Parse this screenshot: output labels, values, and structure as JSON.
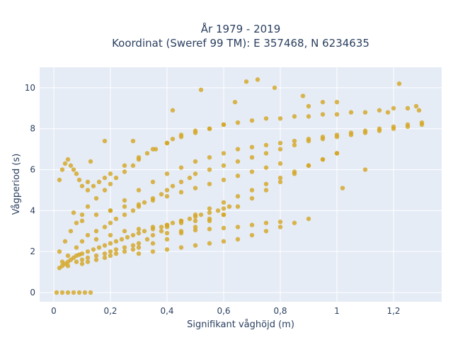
{
  "chart_data": {
    "type": "scatter",
    "title_line1": "År 1979 - 2019",
    "title_line2": "Koordinat (Sweref 99 TM): E 357468, N 6234635",
    "xlabel": "Signifikant våghöjd (m)",
    "ylabel": "Vågperiod (s)",
    "xlim": [
      -0.05,
      1.37
    ],
    "ylim": [
      -0.45,
      11.0
    ],
    "xticks": [
      0,
      0.2,
      0.4,
      0.6,
      0.8,
      1.0,
      1.2
    ],
    "xtick_labels": [
      "0",
      "0,2",
      "0,4",
      "0,6",
      "0,8",
      "1",
      "1,2"
    ],
    "yticks": [
      0,
      2,
      4,
      6,
      8,
      10
    ],
    "ytick_labels": [
      "0",
      "2",
      "4",
      "6",
      "8",
      "10"
    ],
    "grid": true,
    "colors": {
      "plot_bg": "#e5ecf6",
      "grid": "#ffffff",
      "marker": "#d4a521"
    },
    "series": [
      {
        "name": "",
        "x": [
          0.01,
          0.03,
          0.05,
          0.07,
          0.09,
          0.11,
          0.13,
          0.02,
          0.03,
          0.04,
          0.05,
          0.06,
          0.07,
          0.08,
          0.09,
          0.1,
          0.12,
          0.14,
          0.16,
          0.18,
          0.2,
          0.22,
          0.24,
          0.26,
          0.28,
          0.3,
          0.32,
          0.35,
          0.38,
          0.4,
          0.42,
          0.45,
          0.48,
          0.5,
          0.52,
          0.55,
          0.58,
          0.6,
          0.62,
          0.02,
          0.04,
          0.06,
          0.08,
          0.1,
          0.12,
          0.15,
          0.18,
          0.2,
          0.22,
          0.25,
          0.28,
          0.3,
          0.33,
          0.36,
          0.4,
          0.42,
          0.45,
          0.5,
          0.55,
          0.6,
          0.65,
          0.7,
          0.75,
          0.8,
          0.85,
          0.9,
          0.95,
          1.0,
          1.05,
          1.1,
          1.15,
          1.2,
          1.25,
          1.28,
          0.03,
          0.05,
          0.08,
          0.1,
          0.12,
          0.15,
          0.18,
          0.2,
          0.22,
          0.25,
          0.28,
          0.3,
          0.32,
          0.35,
          0.38,
          0.4,
          0.42,
          0.45,
          0.48,
          0.5,
          0.55,
          0.6,
          0.65,
          0.7,
          0.75,
          0.8,
          0.85,
          0.9,
          0.95,
          1.0,
          1.05,
          1.1,
          1.15,
          1.2,
          1.25,
          1.3,
          0.05,
          0.08,
          0.1,
          0.12,
          0.15,
          0.18,
          0.2,
          0.22,
          0.25,
          0.28,
          0.3,
          0.33,
          0.35,
          0.38,
          0.4,
          0.45,
          0.5,
          0.55,
          0.6,
          0.65,
          0.7,
          0.75,
          0.8,
          0.85,
          0.9,
          0.95,
          1.0,
          0.1,
          0.12,
          0.15,
          0.18,
          0.2,
          0.22,
          0.25,
          0.28,
          0.3,
          0.35,
          0.4,
          0.45,
          0.5,
          0.55,
          0.6,
          0.65,
          0.7,
          0.75,
          0.8,
          0.85,
          0.9,
          0.95,
          1.0,
          0.2,
          0.25,
          0.3,
          0.35,
          0.4,
          0.45,
          0.5,
          0.55,
          0.6,
          0.65,
          0.7,
          0.75,
          0.8,
          0.85,
          0.9,
          0.95,
          1.0,
          1.05,
          1.1,
          1.15,
          1.2,
          1.25,
          1.3,
          0.3,
          0.35,
          0.4,
          0.45,
          0.5,
          0.55,
          0.6,
          0.65,
          0.7,
          0.75,
          0.8,
          0.85,
          0.9,
          0.4,
          0.45,
          0.5,
          0.55,
          0.6,
          0.65,
          0.7,
          0.75,
          0.8,
          0.02,
          0.03,
          0.04,
          0.05,
          0.06,
          0.07,
          0.08,
          0.09,
          0.1,
          0.12,
          0.14,
          0.16,
          0.18,
          0.2,
          0.25,
          0.3,
          0.35,
          0.4,
          0.45,
          0.5,
          0.55,
          0.6,
          0.1,
          0.15,
          0.2,
          0.25,
          0.3,
          0.35,
          0.4,
          0.45,
          0.5,
          0.55,
          0.6,
          0.65,
          0.7,
          0.75,
          0.8,
          0.15,
          0.2,
          0.25,
          0.3,
          0.35,
          0.4,
          0.45,
          0.5,
          0.55,
          0.6,
          0.07,
          0.12,
          0.18,
          0.28,
          0.42,
          0.64,
          0.68,
          0.72,
          0.78,
          0.88,
          0.95,
          1.02,
          1.1,
          1.18,
          1.22,
          0.13,
          0.52,
          0.9,
          1.0,
          1.29
        ],
        "y": [
          0,
          0,
          0,
          0,
          0,
          0,
          0,
          1.2,
          1.3,
          1.4,
          1.5,
          1.6,
          1.7,
          1.8,
          1.85,
          1.9,
          2.0,
          2.1,
          2.2,
          2.3,
          2.4,
          2.5,
          2.6,
          2.7,
          2.8,
          2.9,
          3.0,
          3.1,
          3.2,
          3.3,
          3.4,
          3.5,
          3.6,
          3.7,
          3.8,
          3.9,
          4.0,
          4.1,
          4.2,
          2.0,
          2.5,
          3.0,
          3.4,
          3.8,
          4.2,
          4.6,
          5.0,
          5.3,
          5.6,
          5.9,
          6.2,
          6.5,
          6.8,
          7.0,
          7.3,
          7.5,
          7.7,
          7.9,
          8.0,
          8.2,
          8.3,
          8.4,
          8.5,
          8.5,
          8.6,
          8.6,
          8.7,
          8.7,
          8.8,
          8.8,
          8.9,
          9.0,
          9.0,
          9.1,
          1.5,
          1.8,
          2.2,
          2.5,
          2.8,
          3.0,
          3.2,
          3.4,
          3.6,
          3.8,
          4.0,
          4.2,
          4.4,
          4.6,
          4.8,
          5.0,
          5.2,
          5.4,
          5.6,
          5.8,
          6.0,
          6.2,
          6.4,
          6.6,
          6.8,
          7.0,
          7.2,
          7.4,
          7.5,
          7.6,
          7.7,
          7.8,
          7.9,
          8.0,
          8.1,
          8.2,
          1.3,
          1.5,
          1.6,
          1.7,
          1.8,
          1.9,
          2.0,
          2.1,
          2.2,
          2.3,
          2.4,
          2.6,
          2.8,
          3.0,
          3.2,
          3.5,
          3.8,
          4.1,
          4.4,
          4.7,
          5.0,
          5.3,
          5.6,
          5.9,
          6.2,
          6.5,
          6.8,
          1.4,
          1.5,
          1.6,
          1.7,
          1.8,
          1.9,
          2.0,
          2.1,
          2.2,
          2.4,
          2.6,
          2.9,
          3.2,
          3.5,
          3.8,
          4.2,
          4.6,
          5.0,
          5.4,
          5.8,
          6.2,
          6.5,
          6.8,
          4.0,
          4.5,
          5.0,
          5.4,
          5.8,
          6.1,
          6.4,
          6.6,
          6.8,
          7.0,
          7.1,
          7.2,
          7.3,
          7.4,
          7.5,
          7.6,
          7.7,
          7.8,
          7.9,
          8.0,
          8.1,
          8.2,
          8.3,
          1.9,
          2.0,
          2.1,
          2.2,
          2.3,
          2.4,
          2.5,
          2.6,
          2.8,
          3.0,
          3.2,
          3.4,
          3.6,
          2.9,
          3.0,
          3.05,
          3.1,
          3.15,
          3.2,
          3.3,
          3.4,
          3.45,
          5.5,
          6.0,
          6.3,
          6.5,
          6.2,
          6.0,
          5.8,
          5.5,
          5.2,
          5.0,
          5.2,
          5.4,
          5.6,
          5.8,
          6.2,
          6.6,
          7.0,
          7.3,
          7.6,
          7.8,
          8.0,
          8.2,
          3.5,
          3.8,
          4.0,
          4.2,
          4.3,
          4.5,
          4.7,
          4.9,
          5.1,
          5.3,
          5.5,
          5.7,
          5.9,
          6.1,
          6.3,
          2.6,
          2.8,
          3.0,
          3.1,
          3.2,
          3.3,
          3.4,
          3.5,
          3.6,
          3.8,
          3.9,
          5.4,
          7.4,
          7.4,
          8.9,
          9.3,
          10.3,
          10.4,
          10.0,
          9.6,
          9.3,
          5.1,
          6.0,
          8.8,
          10.2,
          6.4,
          9.9,
          9.1,
          9.3,
          8.9
        ]
      }
    ]
  }
}
